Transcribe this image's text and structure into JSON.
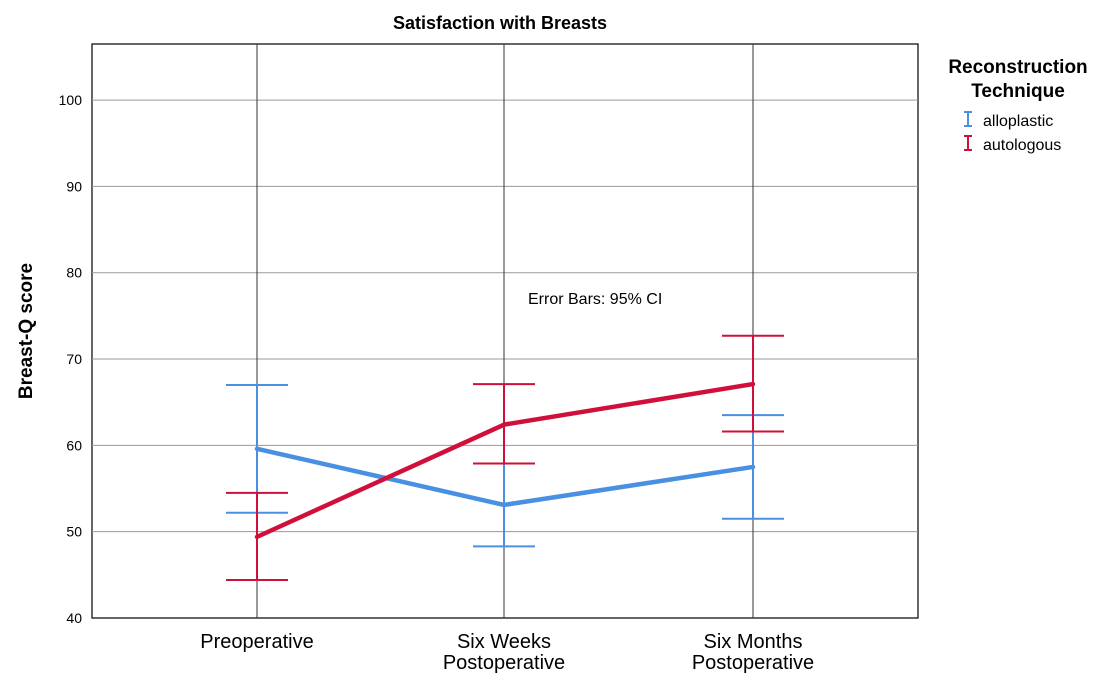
{
  "chart_data": {
    "type": "line",
    "title": "Satisfaction with Breasts",
    "xlabel": "",
    "ylabel": "Breast-Q score",
    "ylim": [
      40,
      106.5
    ],
    "yticks": [
      40,
      50,
      60,
      70,
      80,
      90,
      100
    ],
    "categories": [
      [
        "Preoperative"
      ],
      [
        "Six Weeks",
        "Postoperative"
      ],
      [
        "Six Months",
        "Postoperative"
      ]
    ],
    "grid": true,
    "legend": {
      "title": [
        "Reconstruction",
        "Technique"
      ],
      "position": "right"
    },
    "annotation": "Error Bars: 95% CI",
    "series": [
      {
        "name": "alloplastic",
        "color": "#4a90e2",
        "values": [
          59.6,
          53.1,
          57.5
        ],
        "ci_low": [
          52.2,
          48.3,
          51.5
        ],
        "ci_high": [
          67.0,
          57.9,
          63.5
        ]
      },
      {
        "name": "autologous",
        "color": "#d0103a",
        "values": [
          49.4,
          62.4,
          67.1
        ],
        "ci_low": [
          44.4,
          57.9,
          61.6
        ],
        "ci_high": [
          54.5,
          67.1,
          72.7
        ]
      }
    ]
  }
}
